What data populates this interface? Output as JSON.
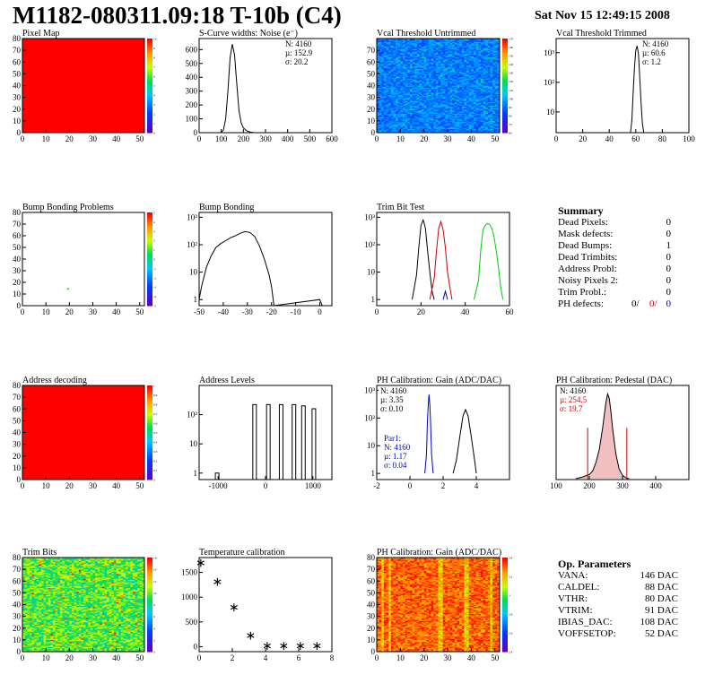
{
  "header": {
    "title": "M1182-080311.09:18 T-10b (C4)",
    "date": "Sat Nov 15 12:49:15 2008"
  },
  "colors": {
    "map_red": "#ff0000",
    "hist": "#000000",
    "red": "#cc0000",
    "green": "#00cc00",
    "blue": "#0000cc"
  },
  "summary": {
    "title": "Summary",
    "rows": [
      {
        "label": "Dead Pixels:",
        "value": "0"
      },
      {
        "label": "Mask defects:",
        "value": "0"
      },
      {
        "label": "Dead Bumps:",
        "value": "1"
      },
      {
        "label": "Dead Trimbits:",
        "value": "0"
      },
      {
        "label": "Address Probl:",
        "value": "0"
      },
      {
        "label": "Noisy Pixels 2:",
        "value": "0"
      },
      {
        "label": "Trim Probl.:",
        "value": "0"
      }
    ],
    "ph_label": "PH defects:",
    "ph_values": [
      "0/",
      "0/",
      "0"
    ]
  },
  "op_params": {
    "title": "Op. Parameters",
    "rows": [
      {
        "label": "VANA:",
        "value": "146 DAC"
      },
      {
        "label": "CALDEL:",
        "value": "88 DAC"
      },
      {
        "label": "VTHR:",
        "value": "80 DAC"
      },
      {
        "label": "VTRIM:",
        "value": "91 DAC"
      },
      {
        "label": "IBIAS_DAC:",
        "value": "108 DAC"
      },
      {
        "label": "VOFFSETOP:",
        "value": "52 DAC"
      }
    ]
  },
  "chart_data": [
    {
      "id": "pixel-map",
      "type": "heatmap",
      "title": "Pixel Map",
      "xlim": [
        0,
        52
      ],
      "ylim": [
        0,
        80
      ],
      "fill": "uniform-red",
      "xticks": [
        0,
        10,
        20,
        30,
        40,
        50
      ],
      "yticks": [
        0,
        10,
        20,
        30,
        40,
        50,
        60,
        70,
        80
      ],
      "colorbar": [
        0,
        1,
        2,
        3,
        4,
        5,
        6,
        7,
        8,
        9,
        10
      ]
    },
    {
      "id": "scurve",
      "type": "line",
      "title": "S-Curve widths: Noise (e⁻)",
      "xlim": [
        0,
        600
      ],
      "ylim": [
        0,
        680
      ],
      "xticks": [
        0,
        100,
        200,
        300,
        400,
        500,
        600
      ],
      "yticks": [
        0,
        100,
        200,
        300,
        400,
        500,
        600
      ],
      "x": [
        90,
        100,
        110,
        120,
        130,
        140,
        150,
        160,
        170,
        180,
        190,
        200,
        210,
        220,
        230,
        240,
        250
      ],
      "y": [
        0,
        2,
        20,
        100,
        300,
        540,
        640,
        560,
        360,
        160,
        70,
        35,
        20,
        10,
        5,
        2,
        0
      ],
      "stats": {
        "N": "N: 4160",
        "mu": "µ: 152.9",
        "sigma": "σ: 20.2"
      }
    },
    {
      "id": "vcal-untrimmed",
      "type": "heatmap",
      "title": "Vcal Threshold Untrimmed",
      "xlim": [
        0,
        52
      ],
      "ylim": [
        0,
        80
      ],
      "fill": "noise-blue",
      "xticks": [
        0,
        10,
        20,
        30,
        40,
        50
      ],
      "yticks": [
        0,
        10,
        20,
        30,
        40,
        50,
        60,
        70
      ],
      "colorbar": [
        60,
        70,
        80,
        90,
        100,
        110,
        120,
        130,
        140,
        150,
        160,
        170
      ]
    },
    {
      "id": "vcal-trimmed",
      "type": "line",
      "title": "Vcal Threshold Trimmed",
      "log": true,
      "xlim": [
        0,
        100
      ],
      "ylim": [
        2,
        3000
      ],
      "xticks": [
        0,
        20,
        40,
        60,
        80,
        100
      ],
      "yticks": [
        10,
        100,
        1000
      ],
      "x": [
        56,
        57,
        58,
        59,
        60,
        61,
        62,
        63,
        64,
        65,
        66
      ],
      "y": [
        2,
        5,
        40,
        300,
        1200,
        1700,
        900,
        150,
        20,
        4,
        2
      ],
      "stats": {
        "N": "N: 4160",
        "mu": "µ: 60.6",
        "sigma": "σ: 1.2"
      }
    },
    {
      "id": "bump-map",
      "type": "heatmap",
      "title": "Bump Bonding Problems",
      "xlim": [
        0,
        52
      ],
      "ylim": [
        0,
        80
      ],
      "fill": "white",
      "xticks": [
        0,
        10,
        20,
        30,
        40,
        50
      ],
      "yticks": [
        0,
        10,
        20,
        30,
        40,
        50,
        60,
        70,
        80
      ],
      "colorbar": [
        -5,
        -4,
        -3,
        -2,
        -1,
        0,
        1,
        2,
        3,
        4,
        5
      ],
      "points": [
        [
          19,
          15
        ]
      ]
    },
    {
      "id": "bump-bonding",
      "type": "line",
      "title": "Bump Bonding",
      "log": true,
      "xlim": [
        -50,
        5
      ],
      "ylim": [
        0.6,
        1500
      ],
      "xticks": [
        -50,
        -40,
        -30,
        -20,
        -10,
        0
      ],
      "yticks": [
        1,
        10,
        100,
        1000
      ],
      "x": [
        -50,
        -49,
        -47,
        -45,
        -43,
        -41,
        -39,
        -37,
        -35,
        -33,
        -31,
        -29,
        -27,
        -25,
        -23,
        -21,
        -20,
        -19,
        0,
        1
      ],
      "y": [
        1,
        3,
        15,
        40,
        80,
        110,
        140,
        180,
        210,
        260,
        300,
        280,
        200,
        90,
        30,
        8,
        3,
        0.6,
        1,
        0.6
      ]
    },
    {
      "id": "trim-bit-test",
      "type": "line",
      "title": "Trim Bit Test",
      "log": true,
      "xlim": [
        0,
        60
      ],
      "ylim": [
        0.6,
        1500
      ],
      "xticks": [
        0,
        20,
        40,
        60
      ],
      "yticks": [
        1,
        10,
        100,
        1000
      ],
      "series": [
        {
          "color": "black",
          "x": [
            16,
            18,
            19,
            20,
            21,
            22,
            23,
            24,
            25,
            26
          ],
          "y": [
            1,
            8,
            80,
            500,
            800,
            400,
            60,
            10,
            2,
            1
          ]
        },
        {
          "color": "red",
          "x": [
            24,
            26,
            27,
            28,
            29,
            30,
            31,
            32,
            33,
            34
          ],
          "y": [
            1,
            6,
            60,
            400,
            700,
            350,
            80,
            10,
            3,
            1
          ]
        },
        {
          "color": "green",
          "x": [
            44,
            46,
            47,
            48,
            49,
            50,
            51,
            52,
            53,
            54,
            55,
            56,
            57
          ],
          "y": [
            1,
            5,
            60,
            350,
            500,
            600,
            550,
            400,
            200,
            60,
            15,
            3,
            1
          ]
        },
        {
          "color": "blue",
          "x": [
            30,
            31,
            32
          ],
          "y": [
            1,
            2,
            1
          ]
        }
      ]
    },
    {
      "id": "address-decoding",
      "type": "heatmap",
      "title": "Address decoding",
      "xlim": [
        0,
        52
      ],
      "ylim": [
        0,
        80
      ],
      "fill": "uniform-red",
      "xticks": [
        0,
        10,
        20,
        30,
        40,
        50
      ],
      "yticks": [
        0,
        10,
        20,
        30,
        40,
        50,
        60,
        70,
        80
      ],
      "colorbar": [
        0,
        0.1,
        0.2,
        0.3,
        0.4,
        0.5,
        0.6,
        0.7,
        0.8,
        0.9,
        1
      ]
    },
    {
      "id": "address-levels",
      "type": "line",
      "title": "Address Levels",
      "log": true,
      "xlim": [
        -1400,
        1400
      ],
      "ylim": [
        0.6,
        1000
      ],
      "xticks": [
        -1000,
        0,
        1000
      ],
      "yticks": [
        1,
        10,
        100
      ],
      "peaks": [
        {
          "x": -1020,
          "y": 1
        },
        {
          "x": -230,
          "y": 220
        },
        {
          "x": 60,
          "y": 220
        },
        {
          "x": 330,
          "y": 220
        },
        {
          "x": 600,
          "y": 220
        },
        {
          "x": 800,
          "y": 200
        },
        {
          "x": 1020,
          "y": 160
        }
      ]
    },
    {
      "id": "ph-gain",
      "type": "line",
      "title": "PH Calibration: Gain (ADC/DAC)",
      "log": true,
      "xlim": [
        -2,
        6
      ],
      "ylim": [
        0.6,
        1500
      ],
      "xticks": [
        -2,
        0,
        2,
        4
      ],
      "yticks": [
        1,
        10,
        100,
        1000
      ],
      "series": [
        {
          "color": "black",
          "x": [
            2.6,
            2.8,
            3.0,
            3.2,
            3.35,
            3.5,
            3.7,
            3.9,
            4.0
          ],
          "y": [
            1,
            3,
            20,
            120,
            200,
            120,
            20,
            3,
            1
          ]
        },
        {
          "color": "blue",
          "x": [
            0.9,
            1.0,
            1.05,
            1.1,
            1.15,
            1.2,
            1.25,
            1.3,
            1.4
          ],
          "y": [
            1,
            5,
            60,
            300,
            700,
            300,
            60,
            5,
            1
          ]
        }
      ],
      "stats": {
        "N": "N: 4160",
        "mu": "µ: 3.35",
        "sigma": "σ: 0.10"
      },
      "stats2": {
        "label": "Par1:",
        "N": "N: 4160",
        "mu": "µ: 1.17",
        "sigma": "σ: 0.04"
      }
    },
    {
      "id": "ph-pedestal",
      "type": "line",
      "title": "PH Calibration: Pedestal (DAC)",
      "xlim": [
        100,
        500
      ],
      "ylim": [
        0,
        110
      ],
      "xticks": [
        100,
        200,
        300,
        400
      ],
      "x": [
        160,
        180,
        200,
        210,
        220,
        230,
        240,
        250,
        255,
        260,
        265,
        270,
        280,
        290,
        300,
        310,
        320
      ],
      "y": [
        1,
        3,
        6,
        10,
        20,
        35,
        60,
        90,
        100,
        95,
        80,
        60,
        30,
        12,
        5,
        2,
        1
      ],
      "stats": {
        "N": "N: 4160",
        "mu": "µ: 254.5",
        "sigma": "σ: 19.7"
      },
      "cuts": [
        195,
        313
      ]
    },
    {
      "id": "trim-bits",
      "type": "heatmap",
      "title": "Trim Bits",
      "xlim": [
        0,
        52
      ],
      "ylim": [
        0,
        80
      ],
      "fill": "noise-green",
      "xticks": [
        0,
        10,
        20,
        30,
        40,
        50
      ],
      "yticks": [
        0,
        10,
        20,
        30,
        40,
        50,
        60,
        70,
        80
      ],
      "colorbar": [
        0,
        2,
        4,
        6,
        8,
        10,
        12,
        14,
        16
      ]
    },
    {
      "id": "temp-cal",
      "type": "scatter",
      "title": "Temperature calibration",
      "xlim": [
        0,
        8
      ],
      "ylim": [
        -100,
        1800
      ],
      "xticks": [
        0,
        2,
        4,
        6,
        8
      ],
      "yticks": [
        0,
        500,
        1000,
        1500
      ],
      "x": [
        0,
        1,
        2,
        3,
        4,
        5,
        6,
        7
      ],
      "y": [
        1680,
        1300,
        790,
        220,
        10,
        5,
        5,
        5
      ]
    },
    {
      "id": "ph-gain-map",
      "type": "heatmap",
      "title": "PH Calibration: Gain (ADC/DAC)",
      "xlim": [
        0,
        52
      ],
      "ylim": [
        0,
        80
      ],
      "fill": "noise-red",
      "xticks": [
        0,
        10,
        20,
        30,
        40,
        50
      ],
      "yticks": [
        0,
        10,
        20,
        30,
        40,
        50,
        60,
        70,
        80
      ],
      "colorbar": [
        2.4,
        2.6,
        2.8,
        3.0,
        3.2,
        3.4
      ]
    }
  ]
}
